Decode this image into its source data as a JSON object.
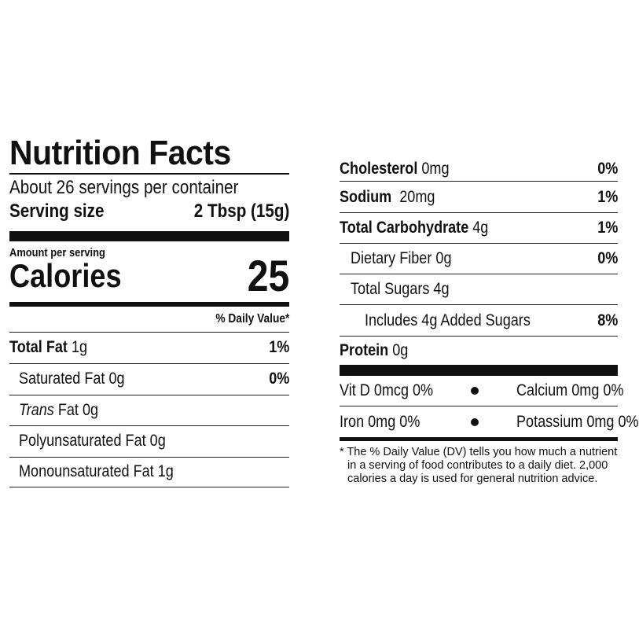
{
  "title": "Nutrition Facts",
  "servings": "About 26 servings per container",
  "serving_size": {
    "label": "Serving size",
    "value": "2 Tbsp (15g)"
  },
  "amount_per_serving": "Amount per serving",
  "calories": {
    "label": "Calories",
    "value": "25"
  },
  "dv_header": "% Daily Value*",
  "left_rows": [
    {
      "name": "Total Fat",
      "amount": "1g",
      "dv": "1%"
    },
    {
      "name": "Saturated Fat",
      "amount": "0g",
      "dv": "0%"
    },
    {
      "name_italic": "Trans",
      "name": " Fat",
      "amount": "0g"
    },
    {
      "name": "Polyunsaturated Fat",
      "amount": "0g"
    },
    {
      "name": "Monounsaturated Fat",
      "amount": "1g"
    }
  ],
  "right_rows": [
    {
      "name": "Cholesterol",
      "amount": "0mg",
      "dv": "0%"
    },
    {
      "name": "Sodium",
      "amount": "20mg",
      "dv": "1%"
    },
    {
      "name": "Total Carbohydrate",
      "amount": "4g",
      "dv": "1%"
    },
    {
      "name": "Dietary Fiber",
      "amount": "0g",
      "dv": "0%"
    },
    {
      "name": "Total Sugars",
      "amount": "4g"
    },
    {
      "name": "Includes 4g Added Sugars",
      "dv": "8%"
    },
    {
      "name": "Protein",
      "amount": "0g"
    }
  ],
  "vitamins": [
    {
      "left": "Vit D 0mcg 0%",
      "right": "Calcium 0mg 0%"
    },
    {
      "left": "Iron 0mg 0%",
      "right": "Potassium 0mg 0%"
    }
  ],
  "footnote": "* The % Daily Value (DV) tells you how much a nutrient in a serving of food contributes to a daily diet. 2,000 calories a day is used for general nutrition advice."
}
